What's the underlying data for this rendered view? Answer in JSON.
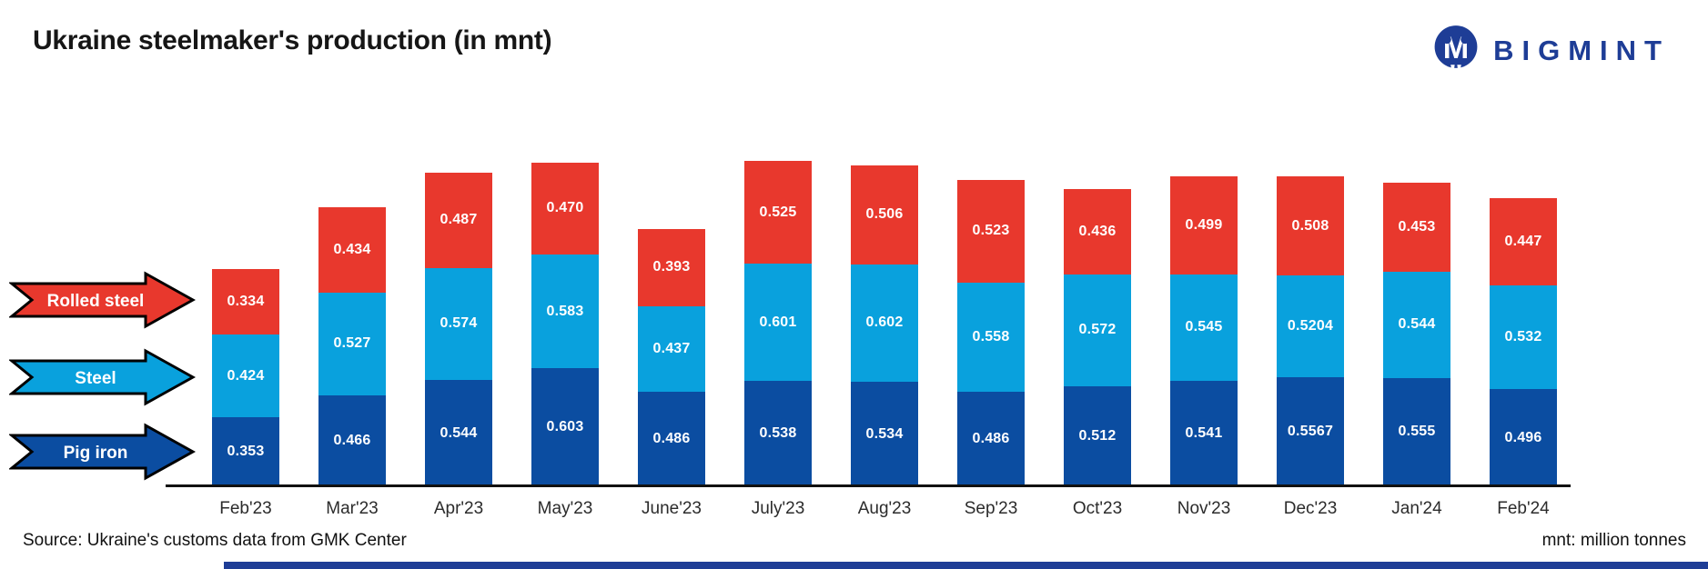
{
  "title": "Ukraine steelmaker's production (in mnt)",
  "logo": {
    "brand": "BIGMINT"
  },
  "legend": {
    "rolled_steel": "Rolled steel",
    "steel": "Steel",
    "pig_iron": "Pig iron"
  },
  "footer": {
    "source": "Source: Ukraine's customs data from GMK Center",
    "unit_note": "mnt: million tonnes"
  },
  "colors": {
    "rolled_steel": "#e8382d",
    "steel": "#09a1dd",
    "pig_iron": "#0b4da1",
    "logo_navy": "#1e3d96",
    "axis": "#111111"
  },
  "chart_data": {
    "type": "bar",
    "stacked": true,
    "title": "Ukraine steelmaker's production (in mnt)",
    "xlabel": "",
    "ylabel": "",
    "ylim": [
      0,
      1.75
    ],
    "grid": false,
    "legend_position": "left",
    "categories": [
      "Feb'23",
      "Mar'23",
      "Apr'23",
      "May'23",
      "June'23",
      "July'23",
      "Aug'23",
      "Sep'23",
      "Oct'23",
      "Nov'23",
      "Dec'23",
      "Jan'24",
      "Feb'24"
    ],
    "series": [
      {
        "name": "Pig iron",
        "key": "pig_iron",
        "values": [
          "0.353",
          "0.466",
          "0.544",
          "0.603",
          "0.486",
          "0.538",
          "0.534",
          "0.486",
          "0.512",
          "0.541",
          "0.5567",
          "0.555",
          "0.496"
        ]
      },
      {
        "name": "Steel",
        "key": "steel",
        "values": [
          "0.424",
          "0.527",
          "0.574",
          "0.583",
          "0.437",
          "0.601",
          "0.602",
          "0.558",
          "0.572",
          "0.545",
          "0.5204",
          "0.544",
          "0.532"
        ]
      },
      {
        "name": "Rolled steel",
        "key": "rolled_steel",
        "values": [
          "0.334",
          "0.434",
          "0.487",
          "0.470",
          "0.393",
          "0.525",
          "0.506",
          "0.523",
          "0.436",
          "0.499",
          "0.508",
          "0.453",
          "0.447"
        ]
      }
    ]
  }
}
